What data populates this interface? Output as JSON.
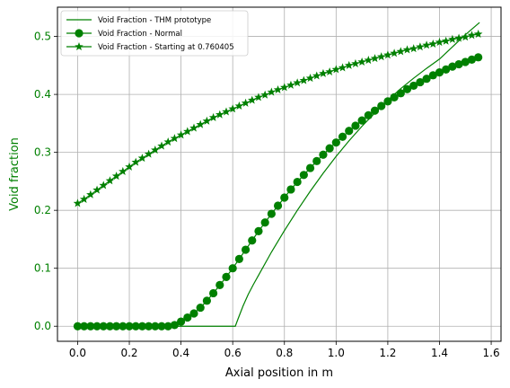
{
  "chart_data": {
    "type": "line",
    "xlabel": "Axial position in m",
    "ylabel": "Void fraction",
    "xlim": [
      -0.078,
      1.638
    ],
    "ylim": [
      -0.026,
      0.5505
    ],
    "xticks": [
      0.0,
      0.2,
      0.4,
      0.6,
      0.8,
      1.0,
      1.2,
      1.4,
      1.6
    ],
    "xtick_labels": [
      "0.0",
      "0.2",
      "0.4",
      "0.6",
      "0.8",
      "1.0",
      "1.2",
      "1.4",
      "1.6"
    ],
    "yticks": [
      0.0,
      0.1,
      0.2,
      0.3,
      0.4,
      0.5
    ],
    "ytick_labels": [
      "0.0",
      "0.1",
      "0.2",
      "0.3",
      "0.4",
      "0.5"
    ],
    "grid": true,
    "legend_position": "top-left",
    "colors": {
      "series": "#008000",
      "axis_label": "#008000",
      "grid": "#b0b0b0"
    },
    "series": [
      {
        "name": "Void Fraction - THM prototype",
        "marker": "none",
        "x": [
          0.0,
          0.61,
          0.62,
          0.64,
          0.66,
          0.68,
          0.7,
          0.75,
          0.8,
          0.85,
          0.9,
          0.95,
          1.0,
          1.05,
          1.1,
          1.15,
          1.2,
          1.25,
          1.3,
          1.35,
          1.4,
          1.45,
          1.5,
          1.555
        ],
        "y": [
          0.0,
          0.0,
          0.012,
          0.035,
          0.055,
          0.072,
          0.088,
          0.128,
          0.165,
          0.2,
          0.233,
          0.264,
          0.293,
          0.32,
          0.345,
          0.368,
          0.39,
          0.41,
          0.428,
          0.445,
          0.461,
          0.482,
          0.503,
          0.524
        ]
      },
      {
        "name": "Void Fraction - Normal",
        "marker": "circle",
        "x": [
          0.0,
          0.025,
          0.05,
          0.075,
          0.1,
          0.125,
          0.15,
          0.175,
          0.2,
          0.225,
          0.25,
          0.275,
          0.3,
          0.325,
          0.35,
          0.375,
          0.4,
          0.425,
          0.45,
          0.475,
          0.5,
          0.525,
          0.55,
          0.575,
          0.6,
          0.625,
          0.65,
          0.675,
          0.7,
          0.725,
          0.75,
          0.775,
          0.8,
          0.825,
          0.85,
          0.875,
          0.9,
          0.925,
          0.95,
          0.975,
          1.0,
          1.025,
          1.05,
          1.075,
          1.1,
          1.125,
          1.15,
          1.175,
          1.2,
          1.225,
          1.25,
          1.275,
          1.3,
          1.325,
          1.35,
          1.375,
          1.4,
          1.425,
          1.45,
          1.475,
          1.5,
          1.525,
          1.55
        ],
        "y": [
          0.0,
          0.0,
          0.0,
          0.0,
          0.0,
          0.0,
          0.0,
          0.0,
          0.0,
          0.0,
          0.0,
          0.0,
          0.0,
          0.0,
          0.0,
          0.002,
          0.008,
          0.015,
          0.022,
          0.032,
          0.044,
          0.057,
          0.071,
          0.085,
          0.1,
          0.116,
          0.132,
          0.148,
          0.164,
          0.179,
          0.194,
          0.208,
          0.222,
          0.236,
          0.249,
          0.261,
          0.273,
          0.285,
          0.296,
          0.307,
          0.317,
          0.327,
          0.337,
          0.346,
          0.355,
          0.364,
          0.372,
          0.38,
          0.388,
          0.395,
          0.402,
          0.409,
          0.415,
          0.421,
          0.427,
          0.433,
          0.438,
          0.443,
          0.448,
          0.452,
          0.456,
          0.46,
          0.464
        ]
      },
      {
        "name": "Void Fraction - Starting at 0.760405",
        "marker": "star",
        "x": [
          0.0,
          0.025,
          0.05,
          0.075,
          0.1,
          0.125,
          0.15,
          0.175,
          0.2,
          0.225,
          0.25,
          0.275,
          0.3,
          0.325,
          0.35,
          0.375,
          0.4,
          0.425,
          0.45,
          0.475,
          0.5,
          0.525,
          0.55,
          0.575,
          0.6,
          0.625,
          0.65,
          0.675,
          0.7,
          0.725,
          0.75,
          0.775,
          0.8,
          0.825,
          0.85,
          0.875,
          0.9,
          0.925,
          0.95,
          0.975,
          1.0,
          1.025,
          1.05,
          1.075,
          1.1,
          1.125,
          1.15,
          1.175,
          1.2,
          1.225,
          1.25,
          1.275,
          1.3,
          1.325,
          1.35,
          1.375,
          1.4,
          1.425,
          1.45,
          1.475,
          1.5,
          1.525,
          1.55
        ],
        "y": [
          0.212,
          0.219,
          0.227,
          0.235,
          0.243,
          0.251,
          0.259,
          0.267,
          0.275,
          0.283,
          0.29,
          0.297,
          0.304,
          0.311,
          0.318,
          0.324,
          0.33,
          0.336,
          0.342,
          0.348,
          0.354,
          0.36,
          0.365,
          0.37,
          0.375,
          0.38,
          0.385,
          0.39,
          0.395,
          0.399,
          0.404,
          0.408,
          0.412,
          0.416,
          0.42,
          0.424,
          0.428,
          0.432,
          0.436,
          0.439,
          0.443,
          0.446,
          0.45,
          0.453,
          0.456,
          0.459,
          0.462,
          0.465,
          0.468,
          0.471,
          0.474,
          0.477,
          0.479,
          0.482,
          0.485,
          0.487,
          0.49,
          0.492,
          0.495,
          0.497,
          0.499,
          0.502,
          0.504
        ]
      }
    ]
  }
}
